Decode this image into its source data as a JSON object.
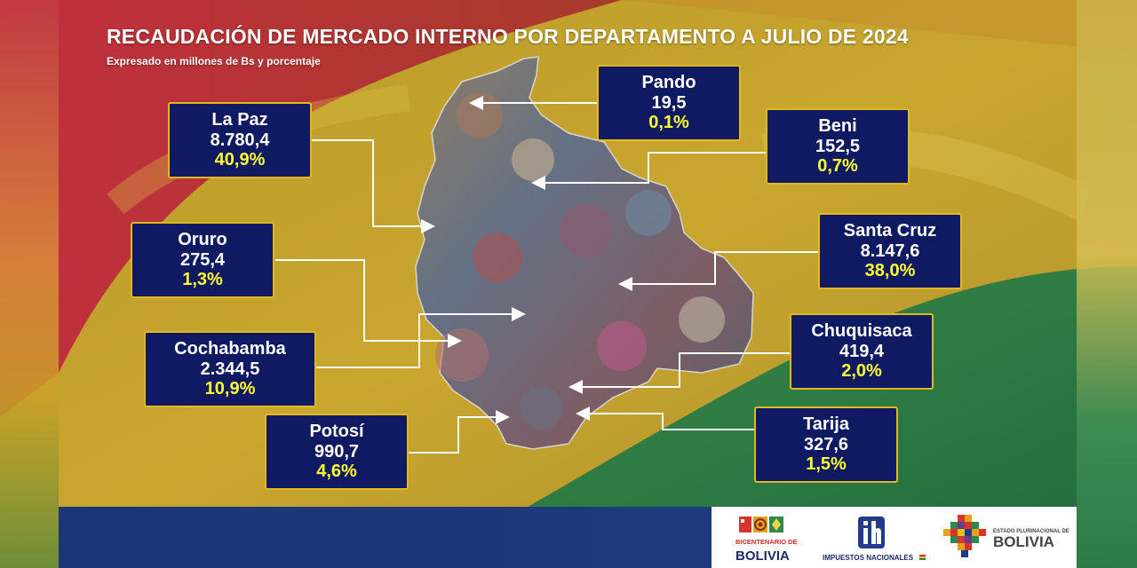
{
  "header": {
    "title": "RECAUDACIÓN DE MERCADO INTERNO POR DEPARTAMENTO A JULIO DE 2024",
    "subtitle": "Expresado en millones de Bs y porcentaje"
  },
  "departments": [
    {
      "name": "Pando",
      "amount": "19,5",
      "percent": "0,1%"
    },
    {
      "name": "La Paz",
      "amount": "8.780,4",
      "percent": "40,9%"
    },
    {
      "name": "Beni",
      "amount": "152,5",
      "percent": "0,7%"
    },
    {
      "name": "Santa Cruz",
      "amount": "8.147,6",
      "percent": "38,0%"
    },
    {
      "name": "Oruro",
      "amount": "275,4",
      "percent": "1,3%"
    },
    {
      "name": "Chuquisaca",
      "amount": "419,4",
      "percent": "2,0%"
    },
    {
      "name": "Cochabamba",
      "amount": "2.344,5",
      "percent": "10,9%"
    },
    {
      "name": "Tarija",
      "amount": "327,6",
      "percent": "1,5%"
    },
    {
      "name": "Potosí",
      "amount": "990,7",
      "percent": "4,6%"
    }
  ],
  "footer": {
    "bicentenario_top": "BICENTENARIO DE",
    "bicentenario_bottom": "BOLIVIA",
    "impuestos": "IMPUESTOS NACIONALES",
    "estado_top": "ESTADO PLURINACIONAL DE",
    "estado_bottom": "BOLIVIA"
  },
  "colors": {
    "card_bg": "#0f1a63",
    "card_border": "#e2b820",
    "percent_text": "#ffff33",
    "flag_red": "#c8303c",
    "flag_yellow": "#c9a42a",
    "flag_green": "#2f7d45"
  }
}
